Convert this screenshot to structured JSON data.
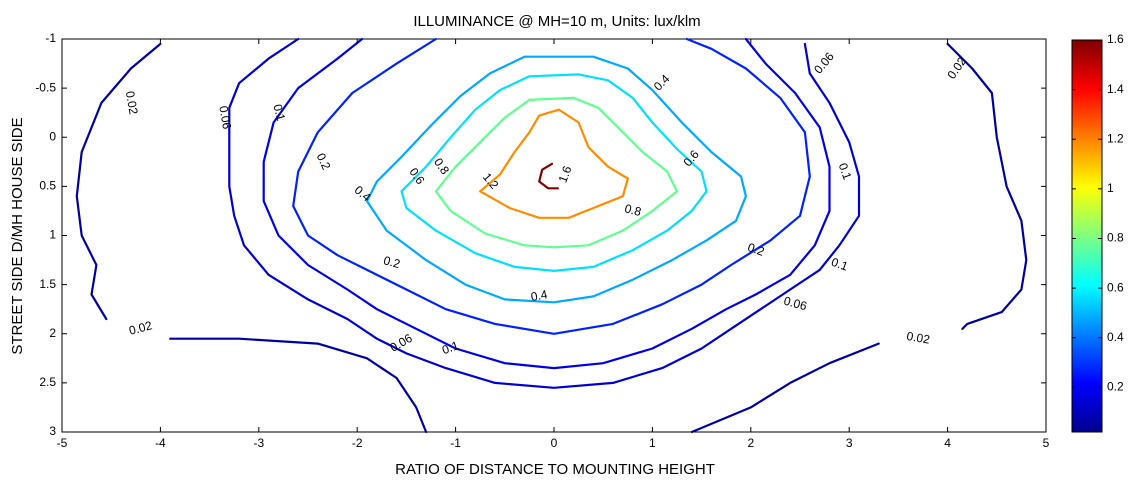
{
  "chart_data": {
    "type": "contour",
    "title": "ILLUMINANCE @ MH=10 m, Units: lux/klm",
    "xlabel": "RATIO OF DISTANCE TO MOUNTING HEIGHT",
    "ylabel": "STREET SIDE  D/MH  HOUSE SIDE",
    "xlim": [
      -5,
      5
    ],
    "ylim": [
      3,
      -1
    ],
    "y_reversed": true,
    "grid": false,
    "x_ticks": [
      "-5",
      "-4",
      "-3",
      "-2",
      "-1",
      "0",
      "1",
      "2",
      "3",
      "4",
      "5"
    ],
    "y_ticks": [
      "-1",
      "-0.5",
      "0",
      "0.5",
      "1",
      "1.5",
      "2",
      "2.5",
      "3"
    ],
    "colorbar": {
      "colormap": "jet",
      "min": 0.02,
      "max": 1.6,
      "ticks": [
        "0.2",
        "0.4",
        "0.6",
        "0.8",
        "1",
        "1.2",
        "1.4",
        "1.6"
      ],
      "position": "right"
    },
    "levels": [
      {
        "value": 0.02,
        "color": "#0000a0",
        "paths": [
          [
            [
              -4,
              -0.95
            ],
            [
              -4.3,
              -0.7
            ],
            [
              -4.6,
              -0.35
            ],
            [
              -4.8,
              0.15
            ],
            [
              -4.85,
              0.6
            ],
            [
              -4.8,
              1
            ],
            [
              -4.65,
              1.3
            ],
            [
              -4.7,
              1.6
            ],
            [
              -4.55,
              1.85
            ]
          ],
          [
            [
              -3.9,
              2.05
            ],
            [
              -3.2,
              2.05
            ],
            [
              -2.4,
              2.1
            ],
            [
              -1.9,
              2.25
            ],
            [
              -1.6,
              2.45
            ],
            [
              -1.4,
              2.75
            ],
            [
              -1.3,
              3
            ]
          ],
          [
            [
              4,
              -0.95
            ],
            [
              4.25,
              -0.7
            ],
            [
              4.45,
              -0.45
            ],
            [
              4.5,
              0
            ],
            [
              4.6,
              0.5
            ],
            [
              4.75,
              0.85
            ],
            [
              4.8,
              1.25
            ],
            [
              4.75,
              1.55
            ],
            [
              4.55,
              1.78
            ],
            [
              4.2,
              1.9
            ],
            [
              4.15,
              1.95
            ]
          ],
          [
            [
              3.3,
              2.1
            ],
            [
              2.8,
              2.3
            ],
            [
              2.4,
              2.5
            ],
            [
              2.0,
              2.75
            ],
            [
              1.4,
              3
            ]
          ]
        ],
        "labels": [
          {
            "text": "0.02",
            "x": -4.3,
            "y": -0.35,
            "rot": 80
          },
          {
            "text": "0.02",
            "x": -4.2,
            "y": 1.95,
            "rot": -15
          },
          {
            "text": "0.02",
            "x": 4.1,
            "y": -0.7,
            "rot": -55
          },
          {
            "text": "0.02",
            "x": 3.7,
            "y": 2.05,
            "rot": 10
          }
        ]
      },
      {
        "value": 0.06,
        "color": "#0000d0",
        "paths": [
          [
            [
              -2.6,
              -1
            ],
            [
              -2.9,
              -0.8
            ],
            [
              -3.2,
              -0.55
            ],
            [
              -3.3,
              -0.3
            ],
            [
              -3.3,
              0.1
            ],
            [
              -3.3,
              0.5
            ],
            [
              -3.25,
              0.8
            ],
            [
              -3.15,
              1.1
            ],
            [
              -2.9,
              1.4
            ],
            [
              -2.5,
              1.65
            ],
            [
              -2.1,
              1.85
            ],
            [
              -1.8,
              2.05
            ],
            [
              -1.5,
              2.2
            ],
            [
              -1.1,
              2.35
            ],
            [
              -0.6,
              2.5
            ],
            [
              0,
              2.55
            ],
            [
              0.6,
              2.5
            ],
            [
              1.1,
              2.35
            ],
            [
              1.5,
              2.15
            ],
            [
              1.8,
              1.95
            ],
            [
              2.1,
              1.75
            ],
            [
              2.4,
              1.55
            ],
            [
              2.7,
              1.35
            ],
            [
              2.9,
              1.1
            ],
            [
              3.1,
              0.8
            ],
            [
              3.1,
              0.4
            ],
            [
              3.0,
              0.05
            ],
            [
              2.8,
              -0.35
            ],
            [
              2.6,
              -0.65
            ],
            [
              2.55,
              -0.95
            ]
          ]
        ],
        "labels": [
          {
            "text": "0.06",
            "x": -3.35,
            "y": -0.2,
            "rot": 80
          },
          {
            "text": "0.06",
            "x": -1.55,
            "y": 2.1,
            "rot": -30
          },
          {
            "text": "0.06",
            "x": 2.45,
            "y": 1.7,
            "rot": 15
          },
          {
            "text": "0.06",
            "x": 2.75,
            "y": -0.75,
            "rot": -50
          }
        ]
      },
      {
        "value": 0.1,
        "color": "#0000e6",
        "paths": [
          [
            [
              -1.95,
              -1
            ],
            [
              -2.2,
              -0.8
            ],
            [
              -2.6,
              -0.5
            ],
            [
              -2.85,
              -0.15
            ],
            [
              -2.95,
              0.25
            ],
            [
              -2.95,
              0.65
            ],
            [
              -2.8,
              1.0
            ],
            [
              -2.5,
              1.3
            ],
            [
              -2.1,
              1.55
            ],
            [
              -1.8,
              1.75
            ],
            [
              -1.4,
              1.95
            ],
            [
              -1.0,
              2.15
            ],
            [
              -0.5,
              2.3
            ],
            [
              0,
              2.35
            ],
            [
              0.5,
              2.3
            ],
            [
              1.0,
              2.15
            ],
            [
              1.4,
              1.95
            ],
            [
              1.75,
              1.75
            ],
            [
              2.05,
              1.6
            ],
            [
              2.4,
              1.4
            ],
            [
              2.65,
              1.1
            ],
            [
              2.8,
              0.75
            ],
            [
              2.8,
              0.3
            ],
            [
              2.7,
              -0.1
            ],
            [
              2.45,
              -0.45
            ],
            [
              2.15,
              -0.75
            ],
            [
              1.95,
              -1
            ]
          ]
        ],
        "labels": [
          {
            "text": "0.1",
            "x": -2.8,
            "y": -0.25,
            "rot": 75
          },
          {
            "text": "0.1",
            "x": -1.05,
            "y": 2.15,
            "rot": -20
          },
          {
            "text": "0.1",
            "x": 2.9,
            "y": 1.3,
            "rot": 20
          },
          {
            "text": "0.1",
            "x": 2.95,
            "y": 0.35,
            "rot": 70
          }
        ]
      },
      {
        "value": 0.2,
        "color": "#0022ff",
        "paths": [
          [
            [
              -1.2,
              -1
            ],
            [
              -1.6,
              -0.75
            ],
            [
              -2.05,
              -0.45
            ],
            [
              -2.4,
              -0.05
            ],
            [
              -2.6,
              0.35
            ],
            [
              -2.65,
              0.7
            ],
            [
              -2.5,
              1.0
            ],
            [
              -2.2,
              1.2
            ],
            [
              -1.9,
              1.35
            ],
            [
              -1.5,
              1.55
            ],
            [
              -1.1,
              1.75
            ],
            [
              -0.6,
              1.9
            ],
            [
              0,
              2.0
            ],
            [
              0.6,
              1.9
            ],
            [
              1.1,
              1.7
            ],
            [
              1.5,
              1.5
            ],
            [
              1.8,
              1.3
            ],
            [
              2.2,
              1.05
            ],
            [
              2.5,
              0.8
            ],
            [
              2.6,
              0.4
            ],
            [
              2.55,
              -0.05
            ],
            [
              2.3,
              -0.4
            ],
            [
              1.95,
              -0.7
            ],
            [
              1.6,
              -0.9
            ],
            [
              1.35,
              -1
            ]
          ]
        ],
        "labels": [
          {
            "text": "0.2",
            "x": -2.35,
            "y": 0.25,
            "rot": 65
          },
          {
            "text": "0.2",
            "x": -1.65,
            "y": 1.28,
            "rot": 15
          },
          {
            "text": "0.2",
            "x": 2.05,
            "y": 1.15,
            "rot": 20
          }
        ]
      },
      {
        "value": 0.4,
        "color": "#00a8ff",
        "paths": [
          [
            [
              -0.3,
              -0.82
            ],
            [
              -0.65,
              -0.65
            ],
            [
              -0.95,
              -0.42
            ],
            [
              -1.25,
              -0.12
            ],
            [
              -1.55,
              0.2
            ],
            [
              -1.8,
              0.45
            ],
            [
              -1.9,
              0.65
            ],
            [
              -1.7,
              0.95
            ],
            [
              -1.3,
              1.25
            ],
            [
              -0.9,
              1.5
            ],
            [
              -0.5,
              1.65
            ],
            [
              0,
              1.68
            ],
            [
              0.4,
              1.62
            ],
            [
              0.8,
              1.45
            ],
            [
              1.2,
              1.25
            ],
            [
              1.55,
              1.05
            ],
            [
              1.85,
              0.85
            ],
            [
              1.95,
              0.6
            ],
            [
              1.9,
              0.4
            ],
            [
              1.6,
              0.15
            ],
            [
              1.3,
              -0.15
            ],
            [
              1.0,
              -0.48
            ],
            [
              0.75,
              -0.7
            ],
            [
              0.4,
              -0.82
            ],
            [
              -0.3,
              -0.82
            ]
          ]
        ],
        "labels": [
          {
            "text": "0.4",
            "x": 1.1,
            "y": -0.55,
            "rot": -45
          },
          {
            "text": "0.4",
            "x": -1.95,
            "y": 0.58,
            "rot": 40
          },
          {
            "text": "0.4",
            "x": -0.15,
            "y": 1.62,
            "rot": -10
          }
        ]
      },
      {
        "value": 0.6,
        "color": "#00e0ff",
        "paths": [
          [
            [
              -0.25,
              -0.62
            ],
            [
              -0.55,
              -0.48
            ],
            [
              -0.8,
              -0.28
            ],
            [
              -1.05,
              0
            ],
            [
              -1.3,
              0.3
            ],
            [
              -1.55,
              0.55
            ],
            [
              -1.5,
              0.72
            ],
            [
              -1.2,
              0.95
            ],
            [
              -0.8,
              1.18
            ],
            [
              -0.4,
              1.32
            ],
            [
              0,
              1.36
            ],
            [
              0.4,
              1.32
            ],
            [
              0.8,
              1.15
            ],
            [
              1.15,
              0.95
            ],
            [
              1.4,
              0.75
            ],
            [
              1.55,
              0.55
            ],
            [
              1.5,
              0.35
            ],
            [
              1.25,
              0.12
            ],
            [
              1.0,
              -0.15
            ],
            [
              0.8,
              -0.4
            ],
            [
              0.55,
              -0.58
            ],
            [
              0.25,
              -0.64
            ],
            [
              -0.25,
              -0.62
            ]
          ]
        ],
        "labels": [
          {
            "text": "0.6",
            "x": -1.4,
            "y": 0.4,
            "rot": 55
          },
          {
            "text": "0.6",
            "x": 1.4,
            "y": 0.22,
            "rot": -50
          }
        ]
      },
      {
        "value": 0.8,
        "color": "#60ff90",
        "paths": [
          [
            [
              -0.25,
              -0.38
            ],
            [
              -0.5,
              -0.2
            ],
            [
              -0.75,
              0.05
            ],
            [
              -1.0,
              0.3
            ],
            [
              -1.2,
              0.55
            ],
            [
              -1.05,
              0.75
            ],
            [
              -0.7,
              0.98
            ],
            [
              -0.3,
              1.1
            ],
            [
              0,
              1.12
            ],
            [
              0.35,
              1.1
            ],
            [
              0.7,
              0.95
            ],
            [
              1.0,
              0.75
            ],
            [
              1.25,
              0.55
            ],
            [
              1.15,
              0.35
            ],
            [
              0.9,
              0.15
            ],
            [
              0.65,
              -0.1
            ],
            [
              0.45,
              -0.3
            ],
            [
              0.2,
              -0.4
            ],
            [
              -0.25,
              -0.38
            ]
          ]
        ],
        "labels": [
          {
            "text": "0.8",
            "x": -1.15,
            "y": 0.3,
            "rot": 55
          },
          {
            "text": "0.8",
            "x": 0.8,
            "y": 0.75,
            "rot": 15
          }
        ]
      },
      {
        "value": 1.2,
        "color": "#ff8c00",
        "paths": [
          [
            [
              -0.25,
              -0.05
            ],
            [
              -0.4,
              0.15
            ],
            [
              -0.55,
              0.38
            ],
            [
              -0.75,
              0.55
            ],
            [
              -0.45,
              0.72
            ],
            [
              -0.15,
              0.82
            ],
            [
              0.15,
              0.82
            ],
            [
              0.4,
              0.72
            ],
            [
              0.7,
              0.6
            ],
            [
              0.75,
              0.42
            ],
            [
              0.55,
              0.3
            ],
            [
              0.35,
              0.1
            ],
            [
              0.25,
              -0.15
            ],
            [
              0.05,
              -0.28
            ],
            [
              -0.15,
              -0.22
            ],
            [
              -0.25,
              -0.05
            ]
          ]
        ],
        "labels": [
          {
            "text": "1.2",
            "x": -0.65,
            "y": 0.45,
            "rot": 50
          }
        ]
      },
      {
        "value": 1.6,
        "color": "#800000",
        "paths": [
          [
            [
              -0.02,
              0.27
            ],
            [
              -0.12,
              0.33
            ],
            [
              -0.15,
              0.45
            ],
            [
              -0.06,
              0.52
            ],
            [
              0.04,
              0.52
            ]
          ]
        ],
        "labels": [
          {
            "text": "1.6",
            "x": 0.12,
            "y": 0.38,
            "rot": -70
          }
        ]
      }
    ]
  }
}
